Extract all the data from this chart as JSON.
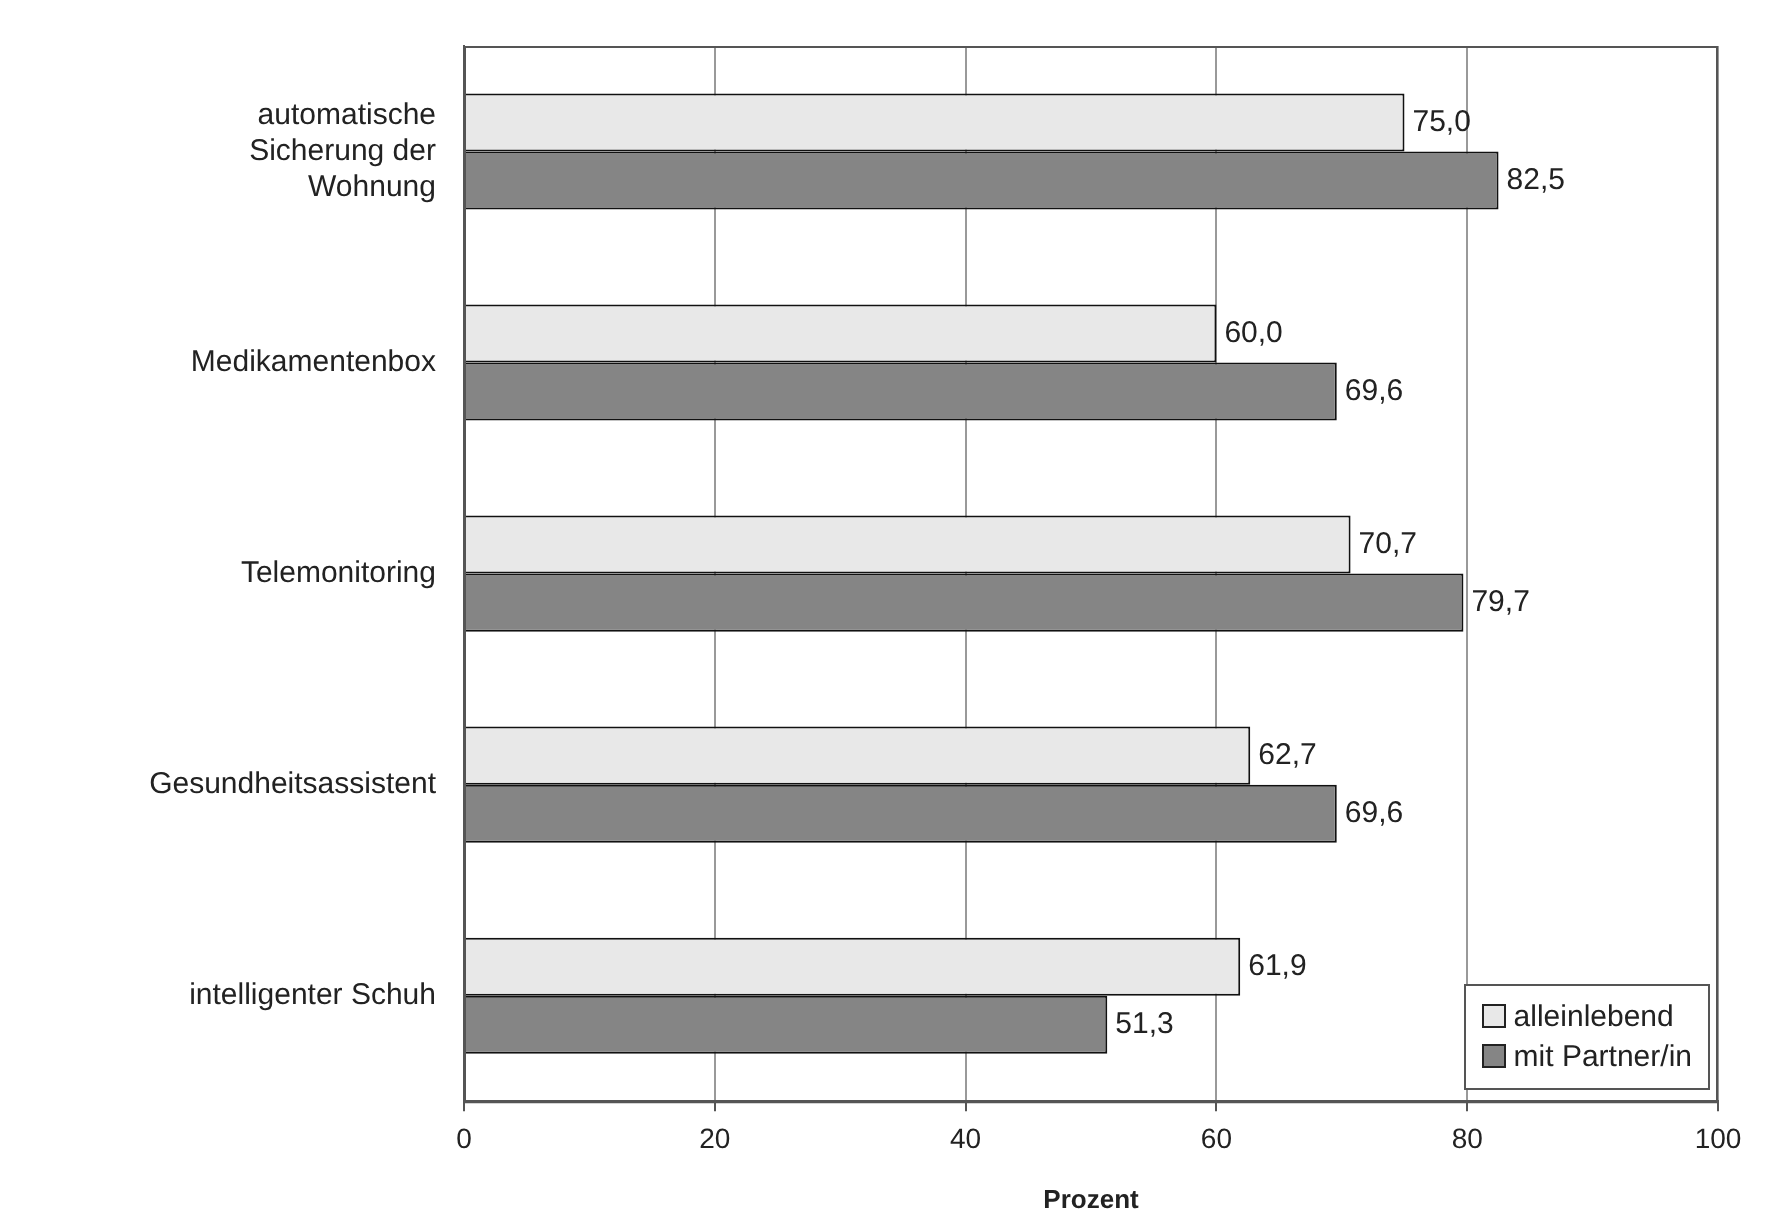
{
  "chart_data": {
    "type": "bar",
    "orientation": "horizontal",
    "xlabel": "Prozent",
    "categories": [
      "automatische Sicherung der Wohnung",
      "Medikamentenbox",
      "Telemonitoring",
      "Gesundheitsassistent",
      "intelligenter Schuh"
    ],
    "series": [
      {
        "name": "alleinlebend",
        "color": "#e8e8e8",
        "values": [
          75.0,
          60.0,
          70.7,
          62.7,
          61.9
        ],
        "value_labels": [
          "75,0",
          "60,0",
          "70,7",
          "62,7",
          "61,9"
        ]
      },
      {
        "name": "mit Partner/in",
        "color": "#858585",
        "values": [
          82.5,
          69.6,
          79.7,
          69.6,
          51.3
        ],
        "value_labels": [
          "82,5",
          "69,6",
          "79,7",
          "69,6",
          "51,3"
        ]
      }
    ],
    "xlim": [
      0,
      100
    ],
    "xticks": [
      0,
      20,
      40,
      60,
      80,
      100
    ],
    "grid": "x",
    "legend": "bottom right"
  }
}
